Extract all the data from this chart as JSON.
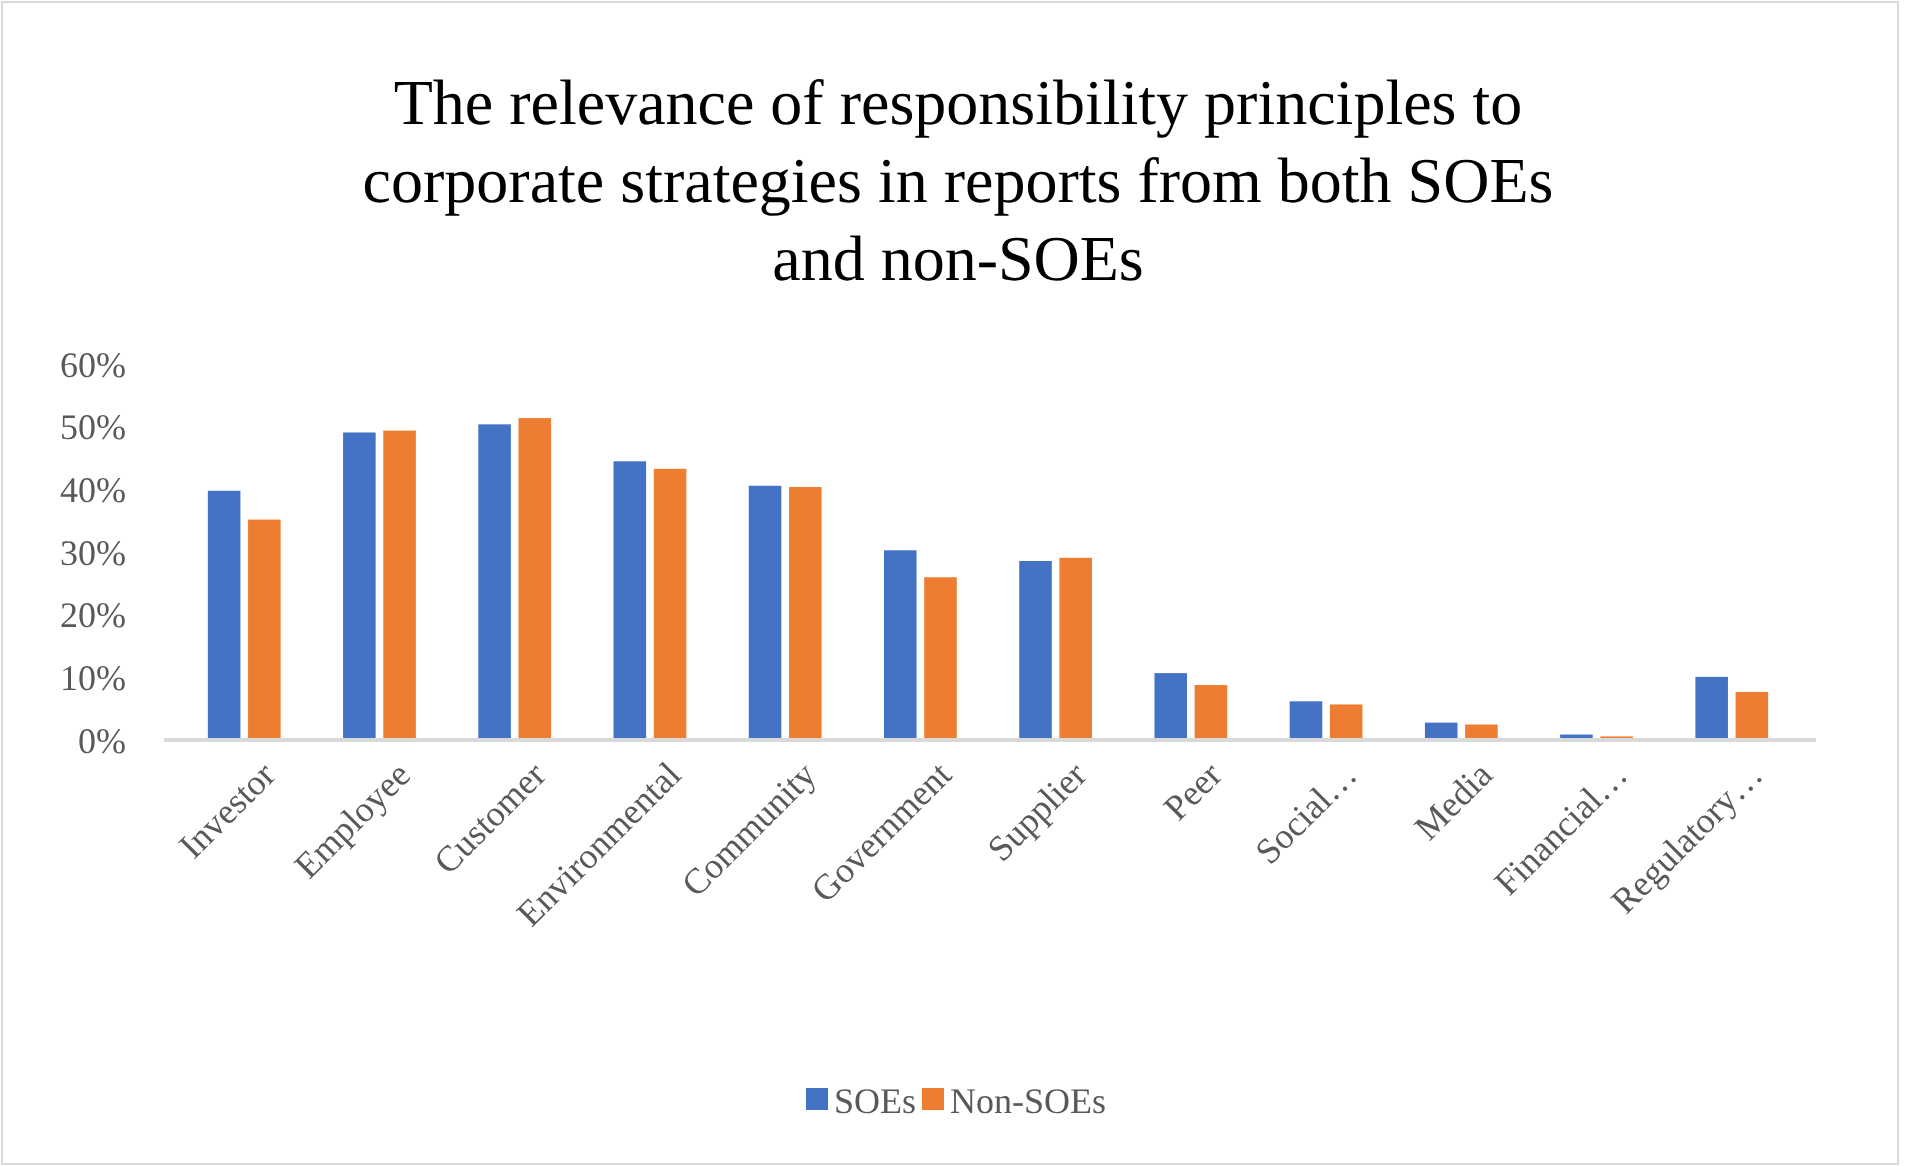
{
  "chart_data": {
    "type": "bar",
    "title": "The relevance of responsibility principles to corporate strategies in reports from both SOEs and non-SOEs",
    "categories": [
      "Investor",
      "Employee",
      "Customer",
      "Environmental",
      "Community",
      "Government",
      "Supplier",
      "Peer",
      "Social…",
      "Media",
      "Financial…",
      "Regulatory…"
    ],
    "series": [
      {
        "name": "SOEs",
        "color": "#4472c4",
        "values": [
          39.9,
          49.2,
          50.5,
          44.6,
          40.7,
          30.4,
          28.7,
          10.8,
          6.3,
          2.9,
          1.0,
          10.2
        ]
      },
      {
        "name": "Non-SOEs",
        "color": "#ed7d31",
        "values": [
          35.3,
          49.5,
          51.5,
          43.4,
          40.5,
          26.1,
          29.2,
          8.9,
          5.8,
          2.6,
          0.7,
          7.8
        ]
      }
    ],
    "ylim": [
      0,
      60
    ],
    "yticks": [
      {
        "value": 0,
        "label": "0%"
      },
      {
        "value": 10,
        "label": "10%"
      },
      {
        "value": 20,
        "label": "20%"
      },
      {
        "value": 30,
        "label": "30%"
      },
      {
        "value": 40,
        "label": "40%"
      },
      {
        "value": 50,
        "label": "50%"
      },
      {
        "value": 60,
        "label": "60%"
      }
    ],
    "grid": false,
    "legend": "bottom"
  }
}
